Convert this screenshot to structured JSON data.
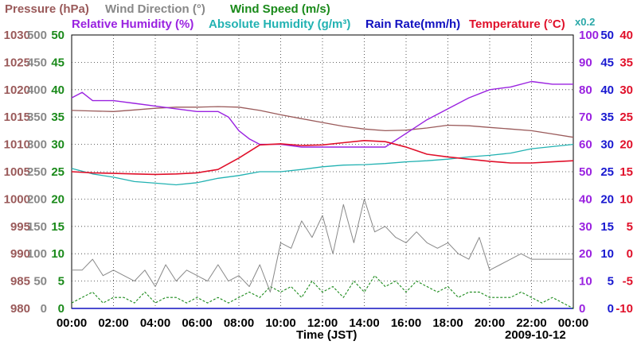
{
  "colors": {
    "pressure": "#9a5a5a",
    "wind_direction": "#888888",
    "wind_speed": "#1a8a1a",
    "relative_humidity": "#9a22e0",
    "absolute_humidity": "#22b2b2",
    "rain_rate": "#1010c0",
    "temperature": "#e0102a",
    "axis_pressure": "#9a5a5a",
    "axis_wind_dir": "#888888",
    "axis_wind_speed": "#1a8a1a",
    "axis_rh": "#9a22e0",
    "axis_abs_hum": "#1818d0",
    "axis_temp": "#e0102a"
  },
  "legend": {
    "pressure": "Pressure (hPa)",
    "wind_direction": "Wind Direction (°)",
    "wind_speed": "Wind Speed (m/s)",
    "relative_humidity": "Relative Humidity (%)",
    "absolute_humidity": "Absolute Humidity (g/m³)",
    "rain_rate": "Rain Rate(mm/h)",
    "temperature": "Temperature (°C)",
    "scale_note": "x0.2"
  },
  "chart_data": {
    "type": "line",
    "xlabel": "Time (JST)",
    "date": "2009-10-12",
    "x_ticks": [
      "00:00",
      "02:00",
      "04:00",
      "06:00",
      "08:00",
      "10:00",
      "12:00",
      "14:00",
      "16:00",
      "18:00",
      "20:00",
      "22:00",
      "00:00"
    ],
    "xlim_hours": [
      0,
      24
    ],
    "grid": true,
    "axes": {
      "pressure_hPa": {
        "ticks": [
          "1030",
          "1025",
          "1020",
          "1015",
          "1010",
          "1005",
          "1000",
          "995",
          "990",
          "985",
          "980"
        ],
        "range": [
          980,
          1030
        ]
      },
      "wind_direction_deg": {
        "ticks": [
          "500",
          "450",
          "400",
          "350",
          "300",
          "250",
          "200",
          "150",
          "100",
          "50",
          "0"
        ],
        "range": [
          0,
          500
        ]
      },
      "wind_speed_ms": {
        "ticks": [
          "50",
          "45",
          "40",
          "35",
          "30",
          "25",
          "20",
          "15",
          "10",
          "5",
          "0"
        ],
        "range": [
          0,
          50
        ]
      },
      "relative_humidity_pct": {
        "ticks": [
          "100",
          "90",
          "80",
          "70",
          "60",
          "50",
          "40",
          "30",
          "20",
          "10",
          "0"
        ],
        "range": [
          0,
          100
        ]
      },
      "abs_humidity_rain": {
        "ticks": [
          "50",
          "45",
          "40",
          "35",
          "30",
          "25",
          "20",
          "15",
          "10",
          "5",
          "0"
        ],
        "range": [
          0,
          50
        ]
      },
      "temperature_C": {
        "ticks": [
          "40",
          "35",
          "30",
          "25",
          "20",
          "15",
          "10",
          "5",
          "0",
          "-5",
          "-10"
        ],
        "range": [
          -10,
          40
        ]
      }
    },
    "series": [
      {
        "name": "Pressure (hPa)",
        "key": "pressure",
        "axis": "pressure_hPa",
        "x": [
          0,
          1,
          2,
          3,
          4,
          5,
          6,
          7,
          8,
          9,
          10,
          11,
          12,
          13,
          14,
          15,
          16,
          17,
          18,
          19,
          20,
          21,
          22,
          23,
          24
        ],
        "y": [
          1016.2,
          1016.1,
          1016.0,
          1016.3,
          1016.6,
          1016.8,
          1016.8,
          1016.9,
          1016.8,
          1016.2,
          1015.4,
          1014.7,
          1014.0,
          1013.3,
          1012.8,
          1012.5,
          1012.6,
          1013.0,
          1013.5,
          1013.4,
          1013.1,
          1012.8,
          1012.5,
          1011.9,
          1011.3
        ]
      },
      {
        "name": "Relative Humidity (%)",
        "key": "relative_humidity",
        "axis": "relative_humidity_pct",
        "x": [
          0,
          0.5,
          1,
          2,
          3,
          4,
          5,
          6,
          7,
          7.5,
          8,
          8.5,
          9,
          10,
          11,
          12,
          13,
          14,
          15,
          16,
          17,
          18,
          19,
          20,
          21,
          22,
          23,
          24
        ],
        "y": [
          77,
          79,
          76,
          76,
          75,
          74,
          73,
          72,
          72,
          70,
          65,
          62,
          60,
          60,
          59,
          59,
          59,
          59,
          59,
          64,
          69,
          73,
          77,
          80,
          81,
          83,
          82,
          82
        ]
      },
      {
        "name": "Absolute Humidity (g/m³)",
        "key": "absolute_humidity",
        "axis": "abs_humidity_rain",
        "x": [
          0,
          1,
          2,
          3,
          4,
          5,
          6,
          7,
          8,
          9,
          10,
          11,
          12,
          13,
          14,
          15,
          16,
          17,
          18,
          19,
          20,
          21,
          22,
          23,
          24
        ],
        "y": [
          25.6,
          24.6,
          24.0,
          23.2,
          22.9,
          22.6,
          23.0,
          23.8,
          24.3,
          25.0,
          25.0,
          25.4,
          25.9,
          26.2,
          26.3,
          26.5,
          26.8,
          27.0,
          27.3,
          27.7,
          28.0,
          28.4,
          29.2,
          29.6,
          30.0
        ]
      },
      {
        "name": "Temperature (°C)",
        "key": "temperature",
        "axis": "temperature_C",
        "x": [
          0,
          1,
          2,
          3,
          4,
          5,
          6,
          7,
          8,
          9,
          10,
          11,
          12,
          13,
          14,
          15,
          16,
          17,
          18,
          19,
          20,
          21,
          22,
          23,
          24
        ],
        "y": [
          15.0,
          14.8,
          14.7,
          14.6,
          14.5,
          14.6,
          14.8,
          15.4,
          17.5,
          19.9,
          20.1,
          19.8,
          19.9,
          20.3,
          20.7,
          20.5,
          19.5,
          18.2,
          17.7,
          17.3,
          16.9,
          16.6,
          16.6,
          16.8,
          17.0
        ]
      },
      {
        "name": "Wind Direction (°)",
        "key": "wind_direction",
        "axis": "wind_direction_deg",
        "x": [
          0,
          0.5,
          1,
          1.5,
          2,
          2.5,
          3,
          3.5,
          4,
          4.5,
          5,
          5.5,
          6,
          6.5,
          7,
          7.5,
          8,
          8.5,
          9,
          9.5,
          10,
          10.5,
          11,
          11.5,
          12,
          12.5,
          13,
          13.5,
          14,
          14.5,
          15,
          15.5,
          16,
          16.5,
          17,
          17.5,
          18,
          18.5,
          19,
          19.5,
          20,
          20.5,
          21,
          21.5,
          22,
          22.5,
          23,
          23.5,
          24
        ],
        "y": [
          70,
          70,
          90,
          60,
          70,
          60,
          50,
          70,
          40,
          80,
          50,
          70,
          60,
          50,
          80,
          50,
          60,
          40,
          80,
          30,
          120,
          110,
          160,
          130,
          170,
          100,
          190,
          120,
          200,
          140,
          150,
          130,
          120,
          140,
          120,
          110,
          120,
          100,
          90,
          130,
          70,
          80,
          90,
          100,
          90,
          90,
          90,
          90,
          90
        ]
      },
      {
        "name": "Wind Speed (m/s)",
        "key": "wind_speed",
        "axis": "wind_speed_ms",
        "x": [
          0,
          0.5,
          1,
          1.5,
          2,
          2.5,
          3,
          3.5,
          4,
          4.5,
          5,
          5.5,
          6,
          6.5,
          7,
          7.5,
          8,
          8.5,
          9,
          9.5,
          10,
          10.5,
          11,
          11.5,
          12,
          12.5,
          13,
          13.5,
          14,
          14.5,
          15,
          15.5,
          16,
          16.5,
          17,
          17.5,
          18,
          18.5,
          19,
          19.5,
          20,
          20.5,
          21,
          21.5,
          22,
          22.5,
          23,
          23.5,
          24
        ],
        "y": [
          1,
          2,
          3,
          1,
          2,
          2,
          1,
          3,
          1,
          2,
          2,
          1,
          2,
          1,
          2,
          1,
          2,
          3,
          2,
          4,
          3,
          4,
          2,
          5,
          3,
          4,
          2,
          5,
          3,
          6,
          4,
          5,
          3,
          5,
          4,
          3,
          4,
          2,
          3,
          3,
          2,
          2,
          2,
          3,
          2,
          1,
          2,
          1,
          0
        ]
      },
      {
        "name": "Rain Rate(mm/h)",
        "key": "rain_rate",
        "axis": "abs_humidity_rain",
        "x": [
          0,
          24
        ],
        "y": [
          0,
          0
        ]
      }
    ]
  }
}
